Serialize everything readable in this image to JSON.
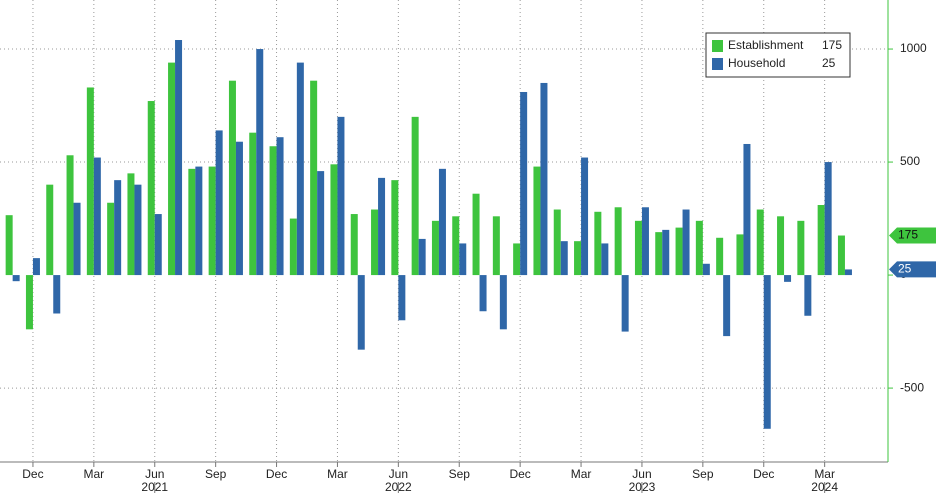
{
  "chart_data": {
    "type": "bar",
    "categories": [
      null,
      "Dec",
      null,
      null,
      "Mar",
      null,
      null,
      "Jun",
      null,
      null,
      "Sep",
      null,
      null,
      "Dec",
      null,
      null,
      "Mar",
      null,
      null,
      "Jun",
      null,
      null,
      "Sep",
      null,
      null,
      "Dec",
      null,
      null,
      "Mar",
      null,
      null,
      "Jun",
      null,
      null,
      "Sep",
      null,
      null,
      "Dec",
      null,
      null,
      "Mar",
      null
    ],
    "year_labels": [
      null,
      null,
      null,
      null,
      null,
      null,
      null,
      "2021",
      null,
      null,
      null,
      null,
      null,
      null,
      null,
      null,
      null,
      null,
      null,
      "2022",
      null,
      null,
      null,
      null,
      null,
      null,
      null,
      null,
      null,
      null,
      null,
      "2023",
      null,
      null,
      null,
      null,
      null,
      null,
      null,
      null,
      "2024",
      null
    ],
    "series": [
      {
        "name": "Establishment",
        "color": "#3ec43e",
        "values": [
          265,
          -240,
          400,
          530,
          830,
          320,
          450,
          770,
          940,
          470,
          480,
          860,
          630,
          570,
          250,
          860,
          490,
          270,
          290,
          420,
          700,
          240,
          260,
          360,
          260,
          140,
          480,
          290,
          150,
          280,
          300,
          240,
          190,
          210,
          240,
          165,
          180,
          290,
          260,
          240,
          310,
          175
        ]
      },
      {
        "name": "Household",
        "color": "#2f67a8",
        "values": [
          -27,
          75,
          -170,
          320,
          520,
          420,
          400,
          270,
          1040,
          480,
          640,
          590,
          1000,
          610,
          940,
          460,
          700,
          -330,
          430,
          -200,
          160,
          470,
          140,
          -160,
          -240,
          810,
          850,
          150,
          520,
          140,
          -250,
          300,
          200,
          290,
          50,
          -270,
          580,
          -680,
          -30,
          -180,
          500,
          25
        ]
      }
    ],
    "ylim": [
      -827,
      1217
    ],
    "yticks": [
      -500,
      0,
      500,
      1000
    ],
    "grid": true,
    "legend": "top-right"
  }
}
